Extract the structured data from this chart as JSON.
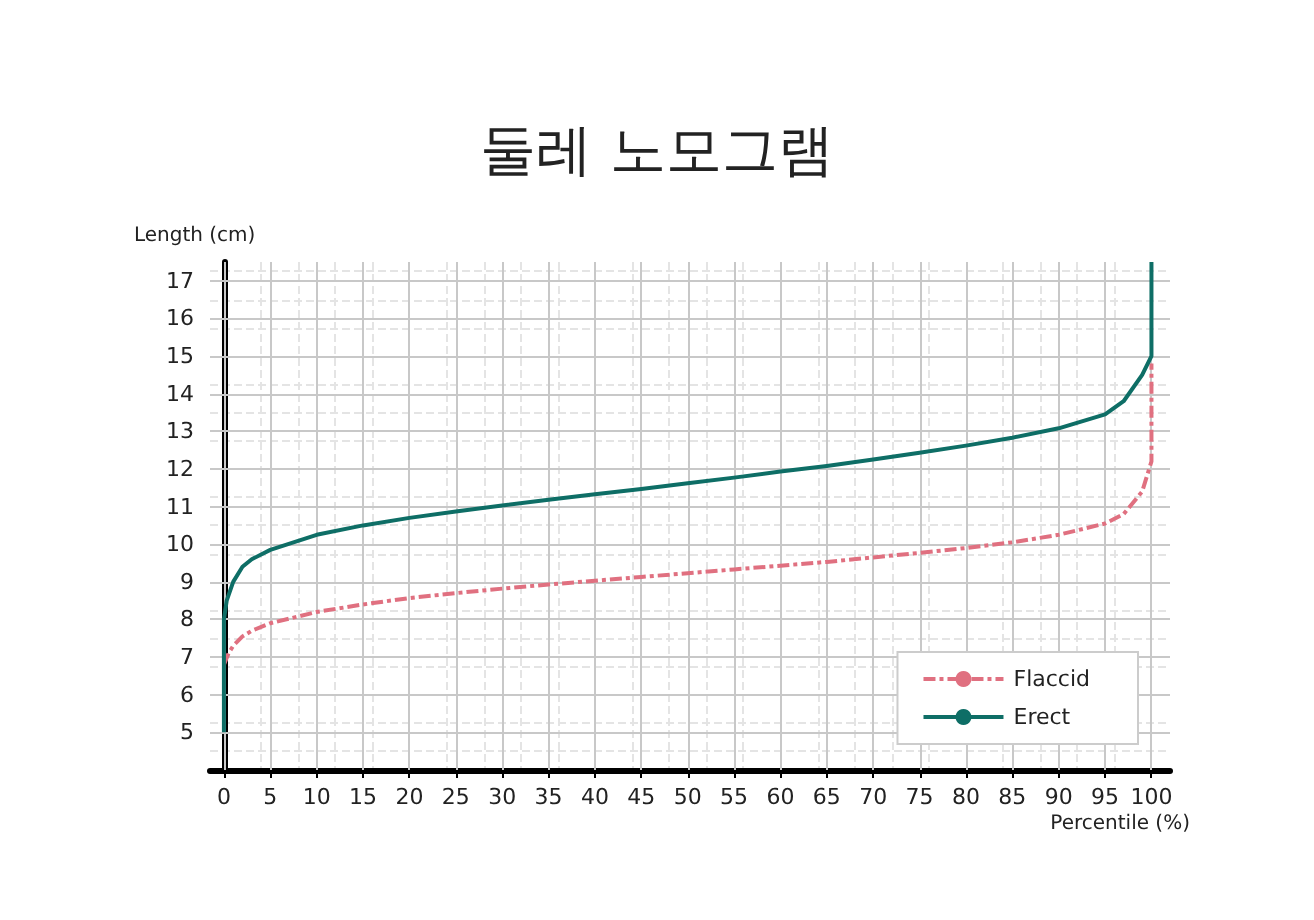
{
  "chart_data": {
    "type": "line",
    "title": "둘레 노모그램",
    "xlabel": "Percentile (%)",
    "ylabel": "Length (cm)",
    "xlim": [
      -1.5,
      102
    ],
    "ylim": [
      4,
      17.5
    ],
    "xticks": [
      0,
      5,
      10,
      15,
      20,
      25,
      30,
      35,
      40,
      45,
      50,
      55,
      60,
      65,
      70,
      75,
      80,
      85,
      90,
      95,
      100
    ],
    "yticks": [
      5,
      6,
      7,
      8,
      9,
      10,
      11,
      12,
      13,
      14,
      15,
      16,
      17
    ],
    "grid": true,
    "legend": "bottom right",
    "marker": "none",
    "series": [
      {
        "name": "Flaccid",
        "color": "#e07080",
        "line_style": "dashed",
        "x": [
          0,
          0.5,
          1,
          2,
          3,
          5,
          10,
          15,
          20,
          25,
          30,
          35,
          40,
          45,
          50,
          55,
          60,
          65,
          70,
          75,
          80,
          85,
          90,
          95,
          97,
          99,
          100,
          100
        ],
        "values": [
          6.8,
          7.1,
          7.3,
          7.55,
          7.7,
          7.9,
          8.2,
          8.4,
          8.57,
          8.7,
          8.82,
          8.93,
          9.03,
          9.13,
          9.23,
          9.33,
          9.43,
          9.53,
          9.65,
          9.77,
          9.9,
          10.05,
          10.25,
          10.55,
          10.8,
          11.4,
          12.2,
          14.8
        ]
      },
      {
        "name": "Erect",
        "color": "#0e6e66",
        "line_style": "solid",
        "x": [
          0,
          0,
          0.3,
          1,
          2,
          3,
          5,
          10,
          15,
          20,
          25,
          30,
          35,
          40,
          45,
          50,
          55,
          60,
          65,
          70,
          75,
          80,
          85,
          90,
          95,
          97,
          99,
          100,
          100
        ],
        "values": [
          5,
          8,
          8.5,
          9,
          9.4,
          9.6,
          9.85,
          10.25,
          10.5,
          10.7,
          10.87,
          11.03,
          11.18,
          11.33,
          11.47,
          11.62,
          11.77,
          11.93,
          12.08,
          12.25,
          12.43,
          12.62,
          12.83,
          13.08,
          13.45,
          13.8,
          14.5,
          15,
          17.5
        ]
      }
    ]
  }
}
